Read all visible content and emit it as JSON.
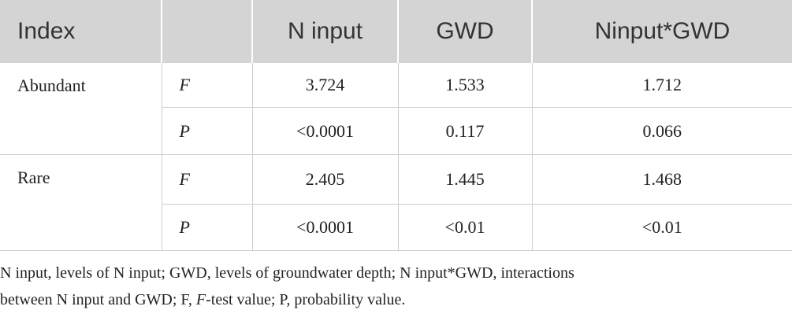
{
  "table": {
    "header": [
      "Index",
      "N input",
      "GWD",
      "Ninput*GWD"
    ],
    "groups": [
      {
        "name": "Abundant",
        "rows": [
          [
            "F",
            "3.724",
            "1.533",
            "1.712"
          ],
          [
            "P",
            "<0.0001",
            "0.117",
            "0.066"
          ]
        ]
      },
      {
        "name": "Rare",
        "rows": [
          [
            "F",
            "2.405",
            "1.445",
            "1.468"
          ],
          [
            "P",
            "<0.0001",
            "<0.01",
            "<0.01"
          ]
        ]
      }
    ]
  },
  "footnote": {
    "lines": [
      "N input, levels of N input; GWD, levels of groundwater depth; N input*GWD, interactions",
      "between N input and GWD; F, ",
      "F",
      "-test value; P, probability value."
    ]
  }
}
